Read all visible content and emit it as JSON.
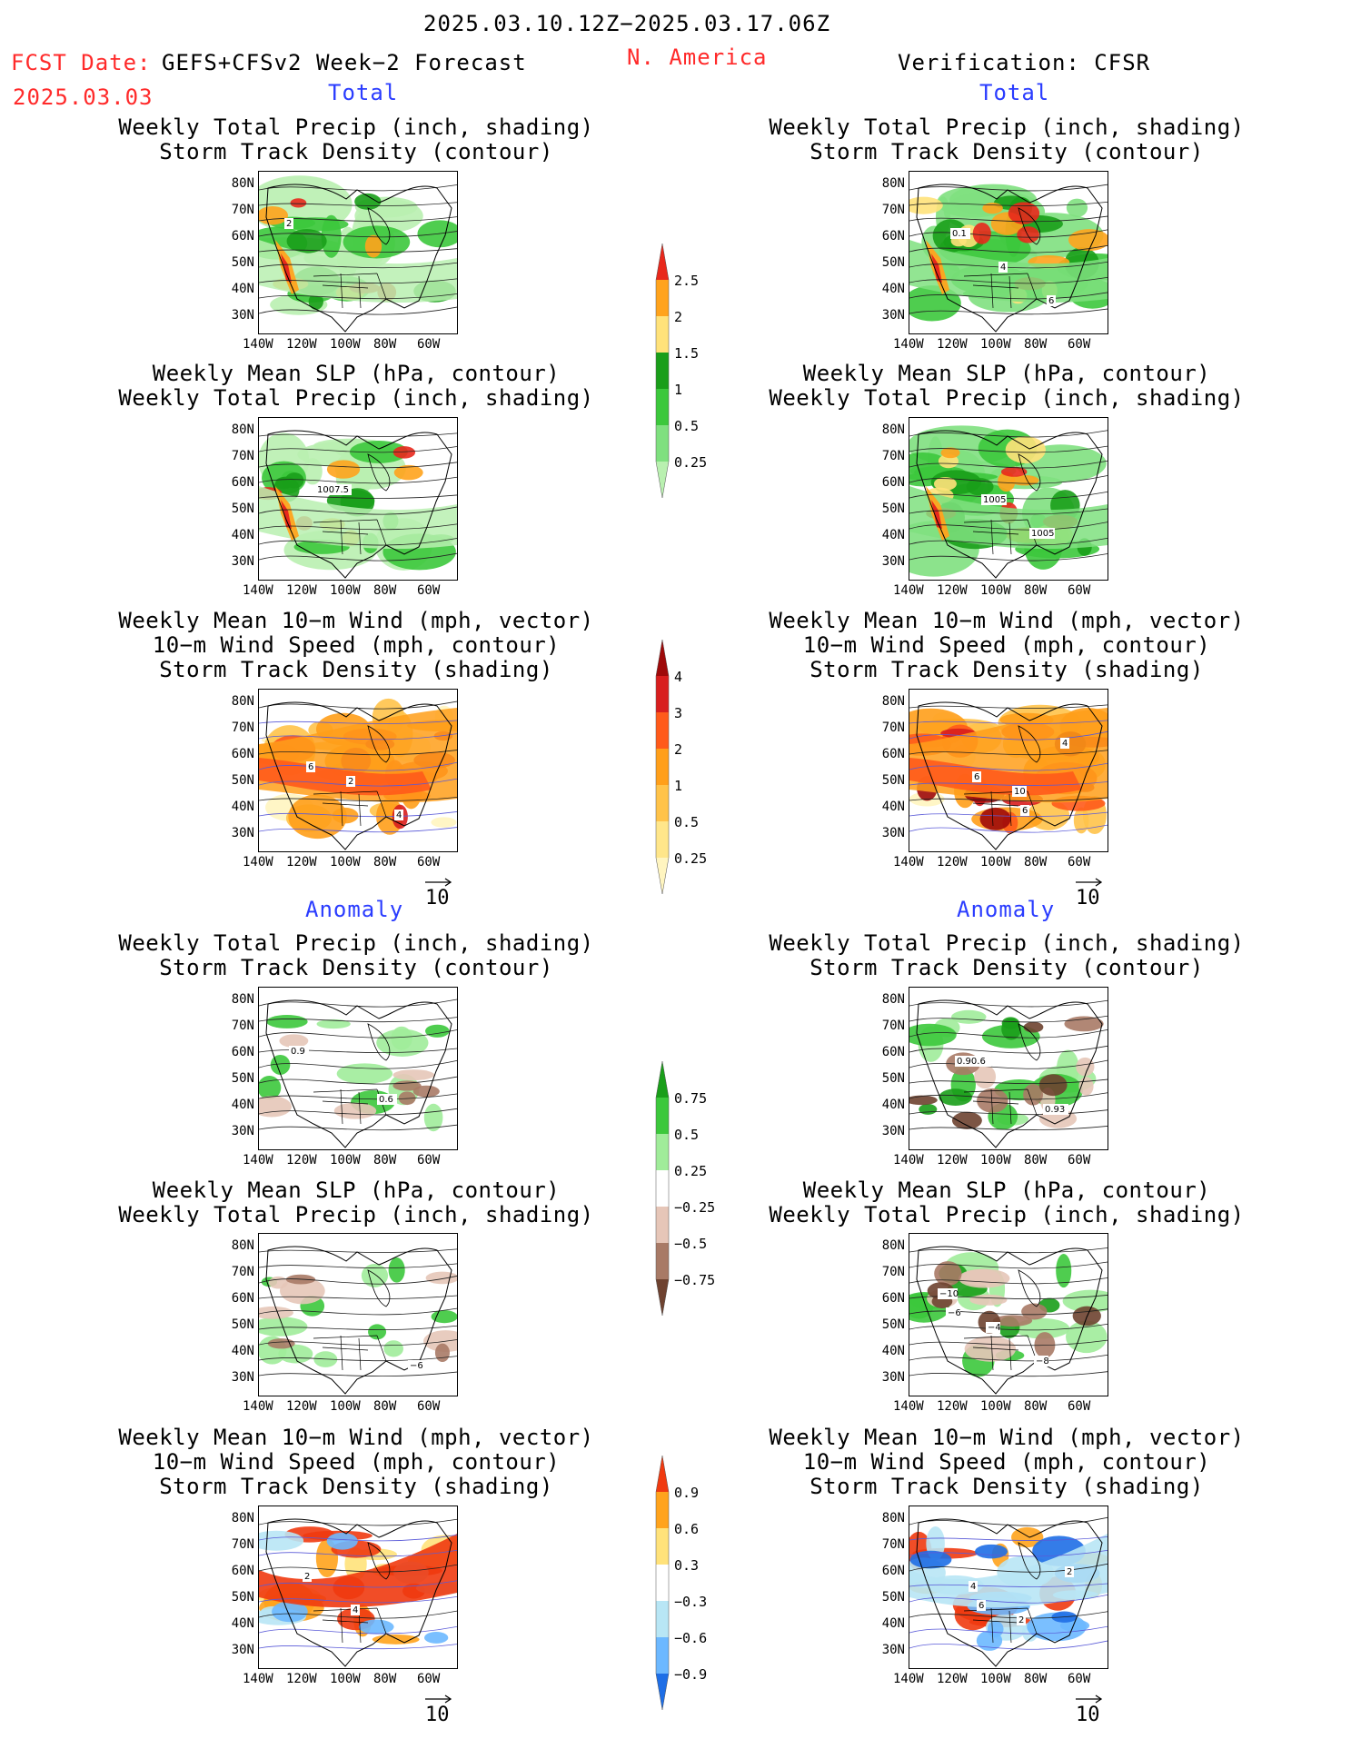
{
  "header": {
    "date_range": "2025.03.10.12Z−2025.03.17.06Z",
    "fcst_label": "FCST Date:",
    "forecast_name": "GEFS+CFSv2 Week−2 Forecast",
    "fcst_date": "2025.03.03",
    "region": "N. America",
    "verification": "Verification: CFSR"
  },
  "sections": {
    "total": "Total",
    "anomaly": "Anomaly"
  },
  "titles": {
    "precip_storm": [
      "Weekly Total Precip (inch, shading)",
      "Storm Track Density (contour)"
    ],
    "slp_precip": [
      "Weekly Mean SLP (hPa, contour)",
      "Weekly Total Precip (inch, shading)"
    ],
    "wind_storm": [
      "Weekly Mean 10−m Wind (mph, vector)",
      "10−m Wind Speed (mph, contour)",
      "Storm Track Density (shading)"
    ]
  },
  "axes": {
    "lat_ticks": [
      "80N",
      "70N",
      "60N",
      "50N",
      "40N",
      "30N"
    ],
    "lon_ticks": [
      "140W",
      "120W",
      "100W",
      "80W",
      "60W"
    ]
  },
  "vector_ref": "10",
  "map_labels": {
    "fcst_total_precip": [
      "2"
    ],
    "fcst_total_slp": [
      "1007.5"
    ],
    "fcst_total_wind": [
      "2",
      "4",
      "6"
    ],
    "obs_total_precip": [
      "0.1",
      "4",
      "6"
    ],
    "obs_total_slp": [
      "1005",
      "1005"
    ],
    "obs_total_wind": [
      "10",
      "4",
      "6",
      "6"
    ],
    "fcst_anom_precip": [
      "0.6",
      "0.9"
    ],
    "fcst_anom_slp": [
      "−6"
    ],
    "fcst_anom_wind": [
      "2",
      "4"
    ],
    "obs_anom_precip": [
      "0.93",
      "0.90.6"
    ],
    "obs_anom_slp": [
      "−10",
      "−4",
      "−8",
      "−6"
    ],
    "obs_anom_wind": [
      "4",
      "2",
      "2",
      "6"
    ]
  },
  "colorbars": {
    "precip_total": {
      "labels": [
        "2.5",
        "2",
        "1.5",
        "1",
        "0.5",
        "0.25"
      ],
      "colors": [
        "#e8281c",
        "#ffa31c",
        "#ffe27a",
        "#1a9e1a",
        "#3cc83c",
        "#7fe07f",
        "#b9f0b0"
      ]
    },
    "storm_total": {
      "labels": [
        "4",
        "3",
        "2",
        "1",
        "0.5",
        "0.25"
      ],
      "colors": [
        "#9e0a0a",
        "#d81e1e",
        "#ff5a1a",
        "#ff9f1a",
        "#ffc34a",
        "#ffe68a",
        "#fff5c0"
      ]
    },
    "precip_anom": {
      "labels": [
        "0.75",
        "0.5",
        "0.25",
        "−0.25",
        "−0.5",
        "−0.75"
      ],
      "colors": [
        "#1a9e1a",
        "#3cc83c",
        "#a0ec9a",
        "#ffffff",
        "#e6c6b8",
        "#a87a66",
        "#6e4230"
      ]
    },
    "storm_anom": {
      "labels": [
        "0.9",
        "0.6",
        "0.3",
        "−0.3",
        "−0.6",
        "−0.9"
      ],
      "colors": [
        "#f03a10",
        "#ffa31c",
        "#ffe27a",
        "#ffffff",
        "#b8e6f5",
        "#6cb8ff",
        "#1e6ee6"
      ]
    }
  },
  "colors": {
    "header_red": "#ff2a2a",
    "section_blue": "#2a3cff"
  }
}
